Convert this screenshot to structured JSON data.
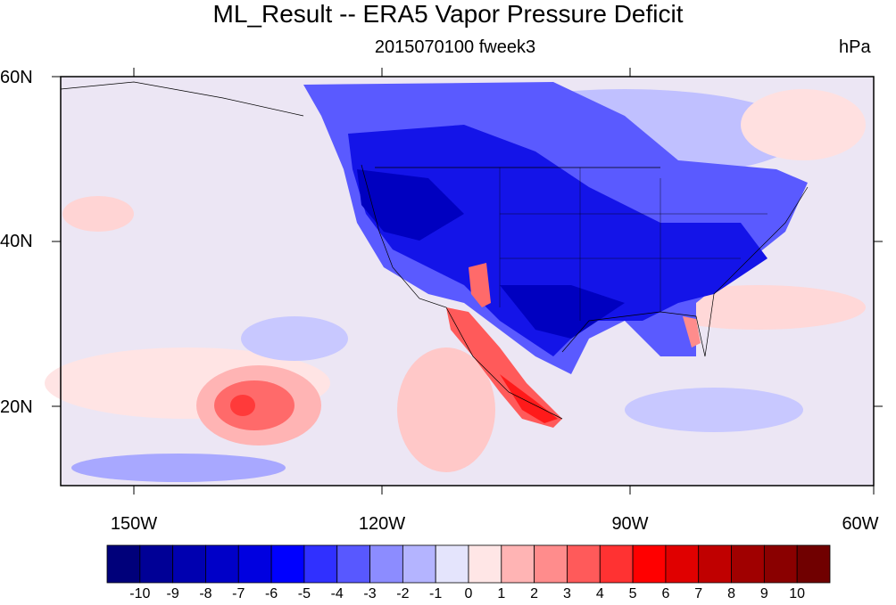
{
  "title": "ML_Result -- ERA5 Vapor Pressure Deficit",
  "subtitle": "2015070100 fweek3",
  "units": "hPa",
  "lat_labels": [
    "60N",
    "40N",
    "20N"
  ],
  "lon_labels": [
    "150W",
    "120W",
    "90W",
    "60W"
  ],
  "colorbar": {
    "labels": [
      "-10",
      "-9",
      "-8",
      "-7",
      "-6",
      "-5",
      "-4",
      "-3",
      "-2",
      "-1",
      "0",
      "1",
      "2",
      "3",
      "4",
      "5",
      "6",
      "7",
      "8",
      "9",
      "10"
    ],
    "colors": [
      "#00007a",
      "#000096",
      "#0000b0",
      "#0000c8",
      "#0000e0",
      "#0000ff",
      "#3030ff",
      "#5858ff",
      "#8c8cff",
      "#b4b4ff",
      "#e4e4fc",
      "#ffe6e6",
      "#ffb4b4",
      "#ff8c8c",
      "#ff5a5a",
      "#ff3232",
      "#ff0000",
      "#e00000",
      "#c00000",
      "#a00000",
      "#8a0000",
      "#700000"
    ]
  },
  "map": {
    "background_color": "#e6e6fa",
    "land_color": "#3a4cf0",
    "strong_dry_color": "#0a0ae0",
    "warm_anomaly_color": "#ff6a6a",
    "mild_warm_color": "#ffdada",
    "ocean_blue_color": "#b9b9ff"
  }
}
